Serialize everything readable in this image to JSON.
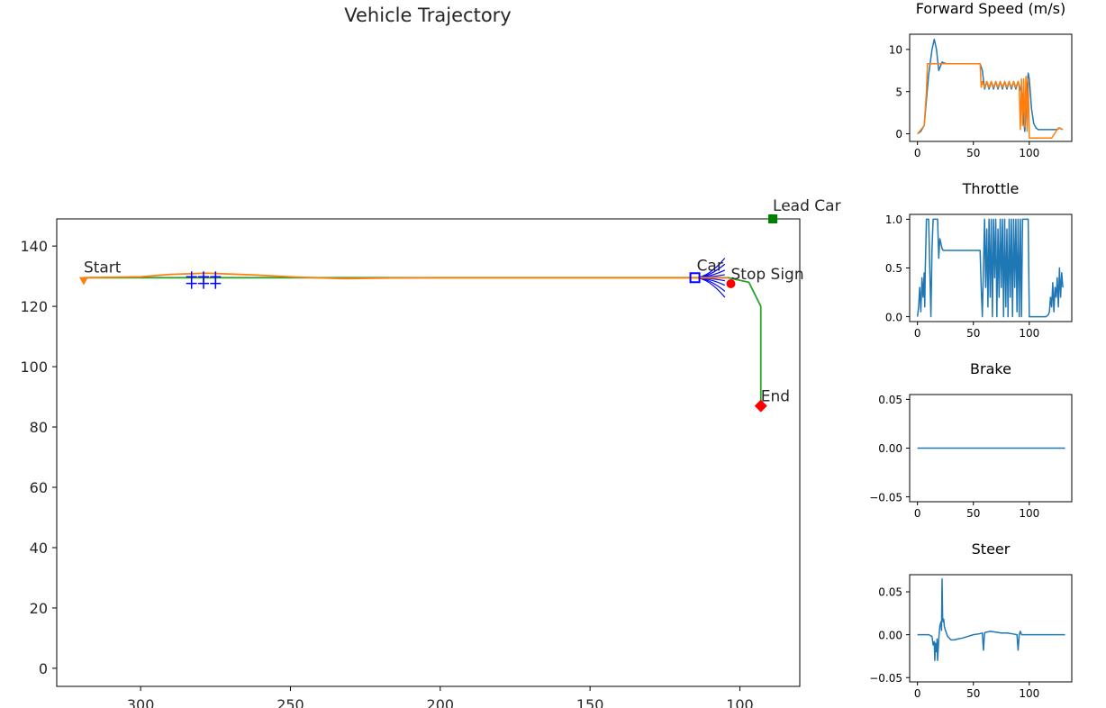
{
  "chart_data": [
    {
      "type": "line",
      "title": "Vehicle Trajectory",
      "xlabel": "",
      "ylabel": "",
      "xlim": [
        328,
        80
      ],
      "ylim": [
        -6,
        149
      ],
      "xticks": [
        300,
        250,
        200,
        150,
        100
      ],
      "yticks": [
        0,
        20,
        40,
        60,
        80,
        100,
        120,
        140
      ],
      "grid": false,
      "series": [
        {
          "color": "#2ca02c",
          "x": [
            319,
            250,
            200,
            150,
            104,
            97,
            95,
            93,
            93,
            93
          ],
          "y": [
            129.5,
            129.5,
            129.5,
            129.5,
            129.5,
            128,
            124,
            120,
            105,
            87
          ]
        },
        {
          "color": "#ff7f0e",
          "x": [
            319,
            300,
            290,
            278,
            262,
            248,
            232,
            216,
            200,
            150,
            104
          ],
          "y": [
            129.5,
            129.8,
            130.6,
            131.0,
            130.4,
            129.7,
            129.2,
            129.4,
            129.5,
            129.5,
            129.5
          ]
        }
      ],
      "local_paths": {
        "color": "blue",
        "origin": [
          115,
          129.5
        ],
        "end_x": 105,
        "end_y": [
          136,
          134,
          132,
          130.5,
          129.5,
          128.5,
          127,
          125,
          123
        ]
      },
      "markers": [
        {
          "label": "Start",
          "shape": "triangle-down",
          "color": "#ff7f0e",
          "x": 319,
          "y": 128.5
        },
        {
          "label": "Lead Car",
          "shape": "square",
          "color": "#008000",
          "x": 89,
          "y": 149
        },
        {
          "label": "Car",
          "shape": "square-open",
          "color": "blue",
          "x": 115,
          "y": 129.5
        },
        {
          "label": "Stop Sign",
          "shape": "circle",
          "color": "#ff0000",
          "x": 103,
          "y": 127.5
        },
        {
          "label": "End",
          "shape": "diamond",
          "color": "#ff0000",
          "x": 93,
          "y": 87
        }
      ],
      "obstacles": {
        "shape": "plus",
        "color": "blue",
        "points": [
          [
            283,
            129.8
          ],
          [
            279,
            129.8
          ],
          [
            275,
            129.8
          ],
          [
            283,
            127.6
          ],
          [
            279,
            127.6
          ],
          [
            275,
            127.6
          ]
        ]
      }
    },
    {
      "type": "line",
      "title": "Forward Speed (m/s)",
      "xlim": [
        -7,
        138
      ],
      "ylim": [
        -0.9,
        11.8
      ],
      "xticks": [
        0,
        50,
        100
      ],
      "yticks": [
        0,
        5,
        10
      ],
      "series": [
        {
          "color": "#1f77b4",
          "x": [
            0,
            3,
            6,
            8,
            10,
            13,
            15,
            17,
            19,
            22,
            26,
            30,
            40,
            50,
            56,
            58,
            60,
            62,
            64,
            66,
            68,
            70,
            72,
            74,
            76,
            78,
            80,
            82,
            84,
            86,
            88,
            90,
            92,
            94,
            95,
            96,
            97,
            99,
            100,
            102,
            104,
            106,
            108,
            112,
            120,
            125,
            127,
            130
          ],
          "y": [
            0,
            0.3,
            1,
            4,
            7,
            10,
            11.2,
            10,
            7.5,
            8.5,
            8.3,
            8.3,
            8.3,
            8.3,
            8.3,
            7.5,
            5.3,
            6.2,
            5.3,
            6.2,
            5.3,
            6.2,
            5.3,
            6.2,
            5.3,
            6.2,
            5.3,
            6.2,
            5.3,
            6.2,
            5.3,
            6.2,
            5.3,
            4.5,
            1.5,
            0.3,
            3,
            7.2,
            6.5,
            3,
            1.2,
            0.7,
            0.5,
            0.5,
            0.5,
            0.5,
            0.7,
            0.5
          ]
        },
        {
          "color": "#ff7f0e",
          "x": [
            0,
            5,
            6,
            8,
            9,
            10,
            56,
            57,
            58,
            60,
            62,
            64,
            66,
            68,
            70,
            72,
            74,
            76,
            78,
            80,
            82,
            84,
            86,
            88,
            90,
            91,
            92,
            93,
            94,
            95,
            96,
            97,
            98,
            99,
            100,
            120,
            124,
            126,
            130
          ],
          "y": [
            0,
            0.8,
            1,
            5,
            8.3,
            8.3,
            8.3,
            5.5,
            6.2,
            5.5,
            6.2,
            5.5,
            6.2,
            5.5,
            6.2,
            5.5,
            6.2,
            5.5,
            6.2,
            5.5,
            6.2,
            5.5,
            6.2,
            5.5,
            6.2,
            5.5,
            0.5,
            6.5,
            1,
            6.5,
            0.8,
            6.8,
            0.3,
            6.5,
            -0.5,
            -0.5,
            0.3,
            0.7,
            0.5
          ]
        }
      ]
    },
    {
      "type": "line",
      "title": "Throttle",
      "xlim": [
        -7,
        138
      ],
      "ylim": [
        -0.05,
        1.05
      ],
      "xticks": [
        0,
        50,
        100
      ],
      "yticks": [
        0.0,
        0.5,
        1.0
      ],
      "series": [
        {
          "color": "#1f77b4",
          "x": [
            0,
            1,
            2,
            3,
            4,
            5,
            6,
            6.5,
            7,
            8,
            9,
            10,
            11,
            12,
            13,
            14,
            15,
            16,
            17,
            18,
            19,
            20,
            21,
            22,
            23,
            26,
            30,
            40,
            50,
            56,
            57,
            58,
            59,
            60,
            61,
            62,
            63,
            64,
            65,
            66,
            67,
            68,
            69,
            70,
            71,
            72,
            73,
            74,
            75,
            76,
            77,
            78,
            79,
            80,
            81,
            82,
            83,
            84,
            85,
            86,
            87,
            88,
            89,
            90,
            91,
            92,
            93,
            94,
            95,
            96,
            97,
            98,
            99,
            100,
            101,
            110,
            115,
            117,
            118,
            119,
            120,
            121,
            122,
            123,
            124,
            125,
            126,
            127,
            128,
            129,
            130
          ],
          "y": [
            0,
            0.1,
            0.3,
            0.05,
            0.4,
            0.2,
            0.45,
            0.1,
            0.5,
            1,
            1,
            1,
            0.5,
            0,
            0.7,
            1,
            1,
            1,
            1,
            1,
            0.6,
            0.8,
            0.75,
            0.7,
            0.68,
            0.68,
            0.68,
            0.68,
            0.68,
            0.68,
            0.3,
            0,
            0.5,
            1,
            0.3,
            0.9,
            0.1,
            1,
            0.2,
            1,
            0,
            1,
            0.4,
            1,
            0,
            0.9,
            0.2,
            1,
            0.3,
            1,
            0,
            1,
            0.1,
            0.9,
            0,
            1,
            0.2,
            1,
            0,
            1,
            0.3,
            1,
            0.05,
            1,
            0,
            1,
            0,
            1,
            1,
            1,
            1,
            1,
            1,
            0,
            0,
            0,
            0,
            0.02,
            0.05,
            0.2,
            0.1,
            0.35,
            0.05,
            0.3,
            0.2,
            0.4,
            0.1,
            0.5,
            0.2,
            0.45,
            0.3
          ]
        }
      ]
    },
    {
      "type": "line",
      "title": "Brake",
      "xlim": [
        -7,
        138
      ],
      "ylim": [
        -0.055,
        0.055
      ],
      "xticks": [
        0,
        50,
        100
      ],
      "yticks": [
        0.05,
        0.0,
        -0.05
      ],
      "ytick_labels": [
        "0.05",
        "0.00",
        "−0.05"
      ],
      "series": [
        {
          "color": "#1f77b4",
          "x": [
            0,
            132
          ],
          "y": [
            0,
            0
          ]
        }
      ]
    },
    {
      "type": "line",
      "title": "Steer",
      "xlim": [
        -7,
        138
      ],
      "ylim": [
        -0.055,
        0.07
      ],
      "xticks": [
        0,
        50,
        100
      ],
      "yticks": [
        0.05,
        0.0,
        -0.05
      ],
      "ytick_labels": [
        "0.05",
        "0.00",
        "−0.05"
      ],
      "series": [
        {
          "color": "#1f77b4",
          "x": [
            0,
            10,
            13,
            14,
            15,
            15.5,
            16,
            17,
            17.5,
            18,
            19,
            20,
            21,
            21.5,
            22,
            22.5,
            23,
            23.5,
            24,
            25,
            27,
            30,
            33,
            36,
            40,
            45,
            50,
            55,
            58,
            59,
            60,
            61,
            62,
            65,
            70,
            75,
            80,
            85,
            89,
            90,
            91,
            92,
            93,
            95,
            100,
            110,
            120,
            132
          ],
          "y": [
            0,
            0,
            -0.002,
            -0.012,
            -0.008,
            -0.03,
            -0.01,
            -0.02,
            -0.005,
            -0.03,
            -0.005,
            0.01,
            0.015,
            0.005,
            0.065,
            0.02,
            0.015,
            0.018,
            0.01,
            0.005,
            -0.002,
            -0.006,
            -0.006,
            -0.005,
            -0.004,
            -0.002,
            0,
            0.001,
            0.002,
            -0.018,
            0.002,
            0.003,
            0.003,
            0.004,
            0.003,
            0.002,
            0.002,
            0.001,
            0,
            -0.018,
            0,
            0.004,
            0,
            0,
            0,
            0,
            0,
            0
          ]
        }
      ]
    }
  ]
}
